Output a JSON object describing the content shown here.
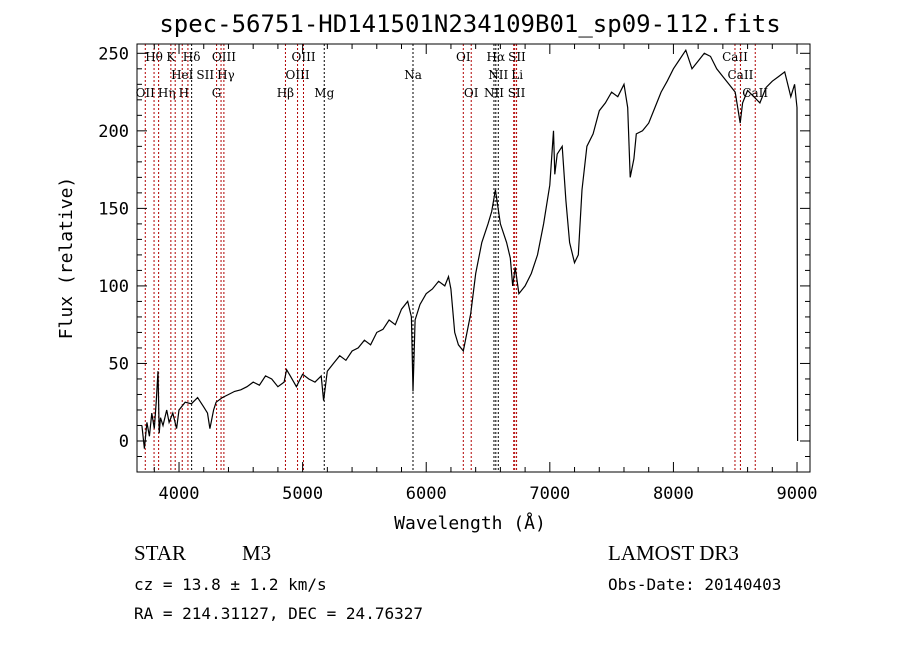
{
  "chart_data": {
    "type": "line",
    "title": "spec-56751-HD141501N234109B01_sp09-112.fits",
    "xlabel": "Wavelength (Å)",
    "ylabel": "Flux (relative)",
    "xlim": [
      3660,
      9105
    ],
    "ylim": [
      -20,
      256
    ],
    "xticks": [
      4000,
      5000,
      6000,
      7000,
      8000,
      9000
    ],
    "yticks": [
      0,
      50,
      100,
      150,
      200,
      250
    ],
    "x_minor_step": 200,
    "y_minor_step": 10,
    "grid": false,
    "series": [
      {
        "name": "spectrum",
        "color": "#000000",
        "x": [
          3700,
          3720,
          3740,
          3760,
          3780,
          3800,
          3815,
          3830,
          3840,
          3850,
          3870,
          3900,
          3920,
          3950,
          3980,
          4000,
          4050,
          4100,
          4150,
          4200,
          4230,
          4250,
          4280,
          4300,
          4350,
          4400,
          4450,
          4500,
          4550,
          4600,
          4650,
          4700,
          4750,
          4800,
          4850,
          4870,
          4900,
          4950,
          4980,
          5000,
          5050,
          5100,
          5150,
          5170,
          5200,
          5250,
          5300,
          5350,
          5400,
          5450,
          5500,
          5550,
          5600,
          5650,
          5700,
          5750,
          5800,
          5850,
          5880,
          5893,
          5910,
          5950,
          6000,
          6050,
          6100,
          6150,
          6180,
          6200,
          6230,
          6260,
          6300,
          6330,
          6360,
          6400,
          6450,
          6500,
          6530,
          6560,
          6600,
          6650,
          6680,
          6700,
          6720,
          6750,
          6800,
          6850,
          6900,
          6950,
          7000,
          7030,
          7040,
          7060,
          7100,
          7130,
          7160,
          7200,
          7230,
          7260,
          7300,
          7350,
          7400,
          7450,
          7500,
          7550,
          7600,
          7630,
          7650,
          7680,
          7700,
          7750,
          7800,
          7850,
          7900,
          7950,
          8000,
          8050,
          8100,
          8150,
          8200,
          8250,
          8300,
          8350,
          8400,
          8450,
          8500,
          8520,
          8540,
          8560,
          8600,
          8650,
          8700,
          8750,
          8800,
          8850,
          8900,
          8950,
          8980,
          9000,
          9005
        ],
        "values": [
          10,
          -5,
          12,
          3,
          18,
          8,
          25,
          45,
          5,
          15,
          10,
          20,
          12,
          18,
          8,
          20,
          25,
          24,
          28,
          22,
          18,
          8,
          20,
          25,
          28,
          30,
          32,
          33,
          35,
          38,
          36,
          42,
          40,
          35,
          38,
          46,
          42,
          35,
          40,
          43,
          40,
          38,
          42,
          26,
          45,
          50,
          55,
          52,
          58,
          60,
          65,
          62,
          70,
          72,
          78,
          75,
          85,
          90,
          80,
          32,
          78,
          88,
          95,
          98,
          103,
          100,
          106,
          98,
          70,
          62,
          58,
          70,
          82,
          108,
          128,
          140,
          148,
          162,
          140,
          128,
          118,
          100,
          112,
          95,
          100,
          108,
          120,
          140,
          165,
          200,
          172,
          185,
          190,
          155,
          128,
          115,
          120,
          162,
          190,
          198,
          213,
          218,
          225,
          222,
          230,
          215,
          170,
          182,
          198,
          200,
          205,
          215,
          225,
          232,
          240,
          246,
          252,
          240,
          245,
          250,
          248,
          240,
          235,
          230,
          225,
          215,
          205,
          218,
          226,
          222,
          218,
          228,
          232,
          235,
          238,
          222,
          230,
          215,
          0
        ]
      }
    ],
    "lines": [
      {
        "label": "OII",
        "wl": 3727,
        "color": "#b00000"
      },
      {
        "label": "Hθ",
        "wl": 3798,
        "color": "#b00000"
      },
      {
        "label": "Hη",
        "wl": 3835,
        "color": "#b00000"
      },
      {
        "label": "K",
        "wl": 3934,
        "color": "#b00000"
      },
      {
        "label": "H",
        "wl": 3969,
        "color": "#b00000"
      },
      {
        "label": "HeI",
        "wl": 4026,
        "color": "#b00000"
      },
      {
        "label": "SII",
        "wl": 4072,
        "color": "#b00000"
      },
      {
        "label": "Hδ",
        "wl": 4102,
        "color": "#000000"
      },
      {
        "label": "G",
        "wl": 4304,
        "color": "#b00000"
      },
      {
        "label": "Hγ",
        "wl": 4340,
        "color": "#b00000"
      },
      {
        "label": "OIII",
        "wl": 4363,
        "color": "#b00000"
      },
      {
        "label": "Hβ",
        "wl": 4861,
        "color": "#b00000"
      },
      {
        "label": "OIII",
        "wl": 4959,
        "color": "#b00000"
      },
      {
        "label": "OIII",
        "wl": 5007,
        "color": "#b00000"
      },
      {
        "label": "Mg",
        "wl": 5175,
        "color": "#000000"
      },
      {
        "label": "Na",
        "wl": 5893,
        "color": "#000000"
      },
      {
        "label": "OI",
        "wl": 6300,
        "color": "#b00000"
      },
      {
        "label": "OI",
        "wl": 6364,
        "color": "#b00000"
      },
      {
        "label": "NII",
        "wl": 6548,
        "color": "#000000"
      },
      {
        "label": "Hα",
        "wl": 6563,
        "color": "#000000"
      },
      {
        "label": "NII",
        "wl": 6583,
        "color": "#000000"
      },
      {
        "label": "Li",
        "wl": 6708,
        "color": "#b00000"
      },
      {
        "label": "SII",
        "wl": 6716,
        "color": "#b00000"
      },
      {
        "label": "SII",
        "wl": 6731,
        "color": "#b00000"
      },
      {
        "label": "CaII",
        "wl": 8498,
        "color": "#b00000"
      },
      {
        "label": "CaII",
        "wl": 8542,
        "color": "#b00000"
      },
      {
        "label": "CaII",
        "wl": 8662,
        "color": "#b00000"
      }
    ]
  },
  "info": {
    "object_class": "STAR",
    "subclass": "M3",
    "cz": "cz = 13.8 ± 1.2 km/s",
    "coords": "RA = 214.31127, DEC =  24.76327",
    "survey": "LAMOST DR3",
    "obs_date": "Obs-Date: 20140403"
  }
}
